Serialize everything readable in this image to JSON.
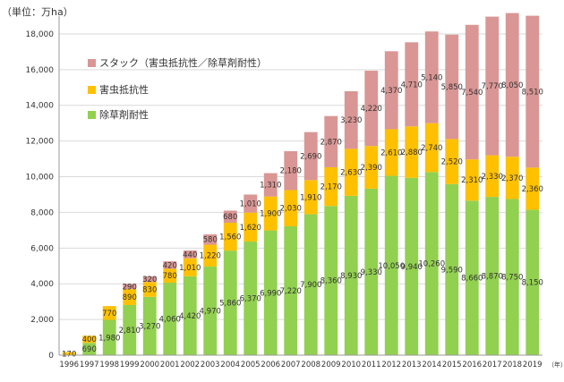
{
  "unit_label": "（単位：万ha）",
  "x_unit_label": "（年）",
  "colors": {
    "stack": "#d99694",
    "insect": "#ffc000",
    "herbicide": "#92d050",
    "grid": "#d9d9d9",
    "axis": "#999999"
  },
  "chart_data": {
    "type": "bar",
    "stacked": true,
    "categories": [
      "1996",
      "1997",
      "1998",
      "1999",
      "2000",
      "2001",
      "2002",
      "2003",
      "2004",
      "2005",
      "2006",
      "2007",
      "2008",
      "2009",
      "2010",
      "2011",
      "2012",
      "2013",
      "2014",
      "2015",
      "2016",
      "2017",
      "2018",
      "2019"
    ],
    "series": [
      {
        "name": "除草剤耐性",
        "color": "#92d050",
        "values": [
          null,
          690,
          1980,
          2810,
          3270,
          4060,
          4420,
          4970,
          5860,
          6370,
          6990,
          7220,
          7900,
          8360,
          8930,
          9330,
          10050,
          9940,
          10260,
          9590,
          8660,
          8870,
          8750,
          8150
        ],
        "labels": [
          "",
          "690",
          "1,980",
          "2,810",
          "3,270",
          "4,060",
          "4,420",
          "4,970",
          "5,860",
          "6,370",
          "6,990",
          "7,220",
          "7,900",
          "8,360",
          "8,930",
          "9,330",
          "10,050",
          "9,940",
          "10,260",
          "9,590",
          "8,660",
          "8,870",
          "8,750",
          "8,150"
        ]
      },
      {
        "name": "害虫抵抗性",
        "color": "#ffc000",
        "values": [
          170,
          400,
          770,
          890,
          830,
          780,
          1010,
          1220,
          1560,
          1620,
          1900,
          2030,
          1910,
          2170,
          2630,
          2390,
          2610,
          2880,
          2740,
          2520,
          2310,
          2330,
          2370,
          2360
        ],
        "labels": [
          "170",
          "400",
          "770",
          "890",
          "830",
          "780",
          "1,010",
          "1,220",
          "1,560",
          "1,620",
          "1,900",
          "2,030",
          "1,910",
          "2,170",
          "2,630",
          "2,390",
          "2,610",
          "2,880",
          "2,740",
          "2,520",
          "2,310",
          "2,330",
          "2,370",
          "2,360"
        ]
      },
      {
        "name": "スタック（害虫抵抗性／除草剤耐性）",
        "color": "#d99694",
        "values": [
          null,
          null,
          null,
          290,
          320,
          420,
          440,
          580,
          680,
          1010,
          1310,
          2180,
          2690,
          2870,
          3230,
          4220,
          4370,
          4710,
          5140,
          5850,
          7540,
          7770,
          8050,
          8510
        ],
        "labels": [
          "",
          "",
          "",
          "290",
          "320",
          "420",
          "440",
          "580",
          "680",
          "1,010",
          "1,310",
          "2,180",
          "2,690",
          "2,870",
          "3,230",
          "4,220",
          "4,370",
          "4,710",
          "5,140",
          "5,850",
          "7,540",
          "7,770",
          "8,050",
          "8,510"
        ]
      }
    ],
    "ylim": [
      0,
      19000
    ],
    "yticks": [
      0,
      2000,
      4000,
      6000,
      8000,
      10000,
      12000,
      14000,
      16000,
      18000
    ],
    "ytick_labels": [
      "0",
      "2,000",
      "4,000",
      "6,000",
      "8,000",
      "10,000",
      "12,000",
      "14,000",
      "16,000",
      "18,000"
    ],
    "grid": true,
    "legend": {
      "position": "top-left",
      "order": [
        "スタック（害虫抵抗性／除草剤耐性）",
        "害虫抵抗性",
        "除草剤耐性"
      ]
    }
  }
}
